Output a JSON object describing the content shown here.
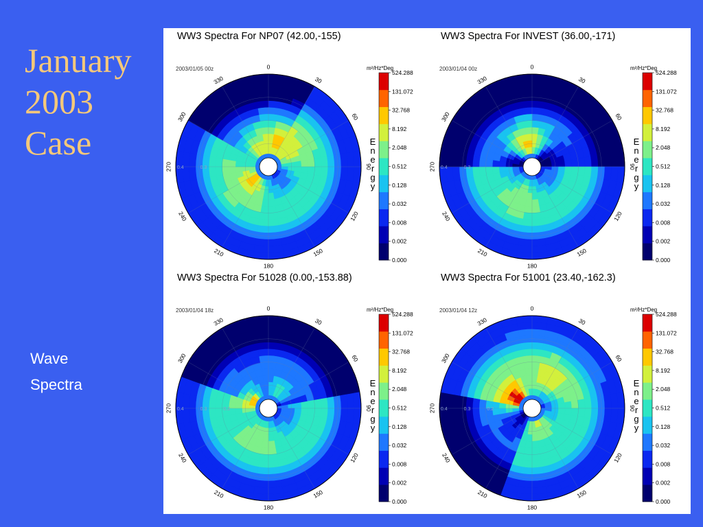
{
  "slide": {
    "title_lines": [
      "January",
      "2003",
      "Case"
    ],
    "subtitle_lines": [
      "Wave",
      "Spectra"
    ],
    "background_color": "#3a5ff0",
    "title_color": "#f5c87a"
  },
  "chart_data": [
    {
      "type": "heatmap",
      "projection": "polar",
      "title": "WW3 Spectra For NP07 (42.00,-155)",
      "datetime": "2003/01/05  00z",
      "angle_ticks": [
        "0",
        "30",
        "60",
        "90",
        "120",
        "150",
        "180",
        "210",
        "240",
        "270",
        "300",
        "330"
      ],
      "radial_labels": [
        "0.4",
        "0.3"
      ],
      "colorbar": {
        "unit": "m²/Hz*Deg",
        "label": "Energy",
        "ticks": [
          "524.288",
          "131.072",
          "32.768",
          "8.192",
          "2.048",
          "0.512",
          "0.128",
          "0.032",
          "0.008",
          "0.002",
          "0.000"
        ]
      },
      "peaks": [
        {
          "direction_deg": 20,
          "radius": 0.28,
          "level": 8
        },
        {
          "direction_deg": 45,
          "radius": 0.24,
          "level": 7
        },
        {
          "direction_deg": 230,
          "radius": 0.22,
          "level": 8
        },
        {
          "direction_deg": 330,
          "radius": 0.18,
          "level": 7
        }
      ],
      "low_energy_sector_deg": [
        300,
        30
      ]
    },
    {
      "type": "heatmap",
      "projection": "polar",
      "title": "WW3 Spectra For INVEST (36.00,-171)",
      "datetime": "2003/01/04  00z",
      "angle_ticks": [
        "0",
        "30",
        "60",
        "90",
        "120",
        "150",
        "180",
        "210",
        "240",
        "270",
        "300",
        "330"
      ],
      "radial_labels": [
        "0.4",
        "0.3"
      ],
      "colorbar": {
        "unit": "m²/Hz*Deg",
        "label": "Energy",
        "ticks": [
          "524.288",
          "131.072",
          "32.768",
          "8.192",
          "2.048",
          "0.512",
          "0.128",
          "0.032",
          "0.008",
          "0.002",
          "0.000"
        ]
      },
      "peaks": [
        {
          "direction_deg": 350,
          "radius": 0.26,
          "level": 8
        },
        {
          "direction_deg": 200,
          "radius": 0.34,
          "level": 6
        },
        {
          "direction_deg": 140,
          "radius": 0.2,
          "level": 2
        }
      ],
      "low_energy_sector_deg": [
        270,
        90
      ]
    },
    {
      "type": "heatmap",
      "projection": "polar",
      "title": "WW3 Spectra For 51028 (0.00,-153.88)",
      "datetime": "2003/01/04  18z",
      "angle_ticks": [
        "0",
        "30",
        "60",
        "90",
        "120",
        "150",
        "180",
        "210",
        "240",
        "270",
        "300",
        "330"
      ],
      "radial_labels": [
        "0.4",
        "0.3",
        "0.2"
      ],
      "colorbar": {
        "unit": "m²/Hz*Deg",
        "label": "Energy",
        "ticks": [
          "524.288",
          "131.072",
          "32.768",
          "8.192",
          "2.048",
          "0.512",
          "0.128",
          "0.032",
          "0.008",
          "0.002",
          "0.000"
        ]
      },
      "peaks": [
        {
          "direction_deg": 295,
          "radius": 0.12,
          "level": 9
        },
        {
          "direction_deg": 200,
          "radius": 0.3,
          "level": 6
        },
        {
          "direction_deg": 30,
          "radius": 0.2,
          "level": 5
        }
      ],
      "low_energy_sector_deg": [
        290,
        80
      ]
    },
    {
      "type": "heatmap",
      "projection": "polar",
      "title": "WW3 Spectra For 51001 (23.40,-162.3)",
      "datetime": "2003/01/04  12z",
      "angle_ticks": [
        "0",
        "30",
        "60",
        "90",
        "120",
        "150",
        "180",
        "210",
        "240",
        "270",
        "300",
        "330"
      ],
      "radial_labels": [
        "0.4",
        "0.3",
        "0.2"
      ],
      "colorbar": {
        "unit": "m²/Hz*Deg",
        "label": "Energy",
        "ticks": [
          "524.288",
          "131.072",
          "32.768",
          "8.192",
          "2.048",
          "0.512",
          "0.128",
          "0.032",
          "0.008",
          "0.002",
          "0.000"
        ]
      },
      "peaks": [
        {
          "direction_deg": 305,
          "radius": 0.2,
          "level": 10
        },
        {
          "direction_deg": 30,
          "radius": 0.38,
          "level": 7
        },
        {
          "direction_deg": 160,
          "radius": 0.16,
          "level": 7
        }
      ],
      "low_energy_sector_deg": [
        200,
        280
      ]
    }
  ],
  "colorscale": [
    "#00006e",
    "#0000b4",
    "#0a28f0",
    "#1e78ff",
    "#19c3f0",
    "#2de6c3",
    "#7df08a",
    "#d2f03c",
    "#ffc800",
    "#ff6400",
    "#dc0000"
  ]
}
